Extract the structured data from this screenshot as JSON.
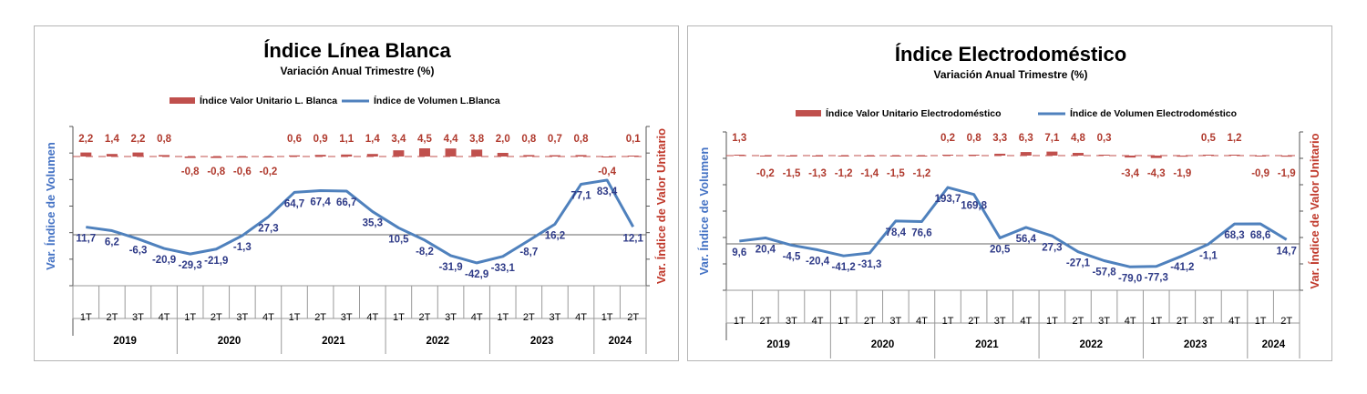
{
  "colors": {
    "bar": "#c0504d",
    "line": "#4f81bd",
    "bar_label": "#b03a2e",
    "line_label": "#2e3a87"
  },
  "chart_data": [
    {
      "type": "bar+line",
      "title": "Índice Línea Blanca",
      "subtitle": "Variación Anual Trimestre  (%)",
      "legend": [
        "Índice Valor Unitario L. Blanca",
        "Índice de Volumen L.Blanca"
      ],
      "legend_position": "top",
      "ylabel_left": "Var. Índice de Volumen",
      "ylabel_right": "Var. Índice de Valor Unitario",
      "grid": false,
      "categories": [
        "1T",
        "2T",
        "3T",
        "4T",
        "1T",
        "2T",
        "3T",
        "4T",
        "1T",
        "2T",
        "3T",
        "4T",
        "1T",
        "2T",
        "3T",
        "4T",
        "1T",
        "2T",
        "3T",
        "4T",
        "1T",
        "2T"
      ],
      "years": [
        {
          "label": "2019",
          "span": 4
        },
        {
          "label": "2020",
          "span": 4
        },
        {
          "label": "2021",
          "span": 4
        },
        {
          "label": "2022",
          "span": 4
        },
        {
          "label": "2023",
          "span": 4
        },
        {
          "label": "2024",
          "span": 2
        }
      ],
      "bar_values": [
        2.2,
        1.4,
        2.2,
        0.8,
        -0.8,
        -0.8,
        -0.6,
        -0.2,
        0.6,
        0.9,
        1.1,
        1.4,
        3.4,
        4.5,
        4.4,
        3.8,
        2.0,
        0.8,
        0.7,
        0.8,
        -0.4,
        0.1
      ],
      "bar_labels": [
        "2,2",
        "1,4",
        "2,2",
        "0,8",
        "-0,8",
        "-0,8",
        "-0,6",
        "-0,2",
        "0,6",
        "0,9",
        "1,1",
        "1,4",
        "3,4",
        "4,5",
        "4,4",
        "3,8",
        "2,0",
        "0,8",
        "0,7",
        "0,8",
        "-0,4",
        "0,1"
      ],
      "line_values": [
        11.7,
        6.2,
        -6.3,
        -20.9,
        -29.3,
        -21.9,
        -1.3,
        27.3,
        64.7,
        67.4,
        66.7,
        35.3,
        10.5,
        -8.2,
        -31.9,
        -42.9,
        -33.1,
        -8.7,
        16.2,
        77.1,
        83.4,
        12.1
      ],
      "line_labels": [
        "11,7",
        "6,2",
        "-6,3",
        "-20,9",
        "-29,3",
        "-21,9",
        "-1,3",
        "27,3",
        "64,7",
        "67,4",
        "66,7",
        "35,3",
        "10,5",
        "-8,2",
        "-31,9",
        "-42,9",
        "-33,1",
        "-8,7",
        "16,2",
        "77,1",
        "83,4",
        "12,1"
      ],
      "ylim_line": [
        -100,
        120
      ]
    },
    {
      "type": "bar+line",
      "title": "Índice Electrodoméstico",
      "subtitle": "Variación Anual Trimestre  (%)",
      "legend": [
        "Índice Valor Unitario Electrodoméstico",
        "Índice de Volumen Electrodoméstico"
      ],
      "legend_position": "top",
      "ylabel_left": "Var. Índice de Volumen",
      "ylabel_right": "Var. Índice de Valor Unitario",
      "grid": false,
      "categories": [
        "1T",
        "2T",
        "3T",
        "4T",
        "1T",
        "2T",
        "3T",
        "4T",
        "1T",
        "2T",
        "3T",
        "4T",
        "1T",
        "2T",
        "3T",
        "4T",
        "1T",
        "2T",
        "3T",
        "4T",
        "1T",
        "2T"
      ],
      "years": [
        {
          "label": "2019",
          "span": 4
        },
        {
          "label": "2020",
          "span": 4
        },
        {
          "label": "2021",
          "span": 4
        },
        {
          "label": "2022",
          "span": 4
        },
        {
          "label": "2023",
          "span": 4
        },
        {
          "label": "2024",
          "span": 2
        }
      ],
      "bar_values": [
        1.3,
        -0.2,
        -1.5,
        -1.3,
        -1.2,
        -1.4,
        -1.5,
        -1.2,
        0.2,
        0.8,
        3.3,
        6.3,
        7.1,
        4.8,
        0.3,
        -3.4,
        -4.3,
        -1.9,
        0.5,
        1.2,
        -0.9,
        -1.9
      ],
      "bar_labels": [
        "1,3",
        "-0,2",
        "-1,5",
        "-1,3",
        "-1,2",
        "-1,4",
        "-1,5",
        "-1,2",
        "0,2",
        "0,8",
        "3,3",
        "6,3",
        "7,1",
        "4,8",
        "0,3",
        "-3,4",
        "-4,3",
        "-1,9",
        "0,5",
        "1,2",
        "-0,9",
        "-1,9"
      ],
      "line_values": [
        9.6,
        20.4,
        -4.5,
        -20.4,
        -41.2,
        -31.3,
        78.4,
        76.6,
        193.7,
        169.8,
        20.5,
        56.4,
        27.3,
        -27.1,
        -57.8,
        -79.0,
        -77.3,
        -41.2,
        -1.1,
        68.3,
        68.6,
        14.7
      ],
      "line_labels": [
        "9,6",
        "20,4",
        "-4,5",
        "-20,4",
        "-41,2",
        "-31,3",
        "78,4",
        "76,6",
        "193,7",
        "169,8",
        "20,5",
        "56,4",
        "27,3",
        "-27,1",
        "-57,8",
        "-79,0",
        "-77,3",
        "-41,2",
        "-1,1",
        "68,3",
        "68,6",
        "14,7"
      ],
      "ylim_line": [
        -150,
        300
      ]
    }
  ]
}
